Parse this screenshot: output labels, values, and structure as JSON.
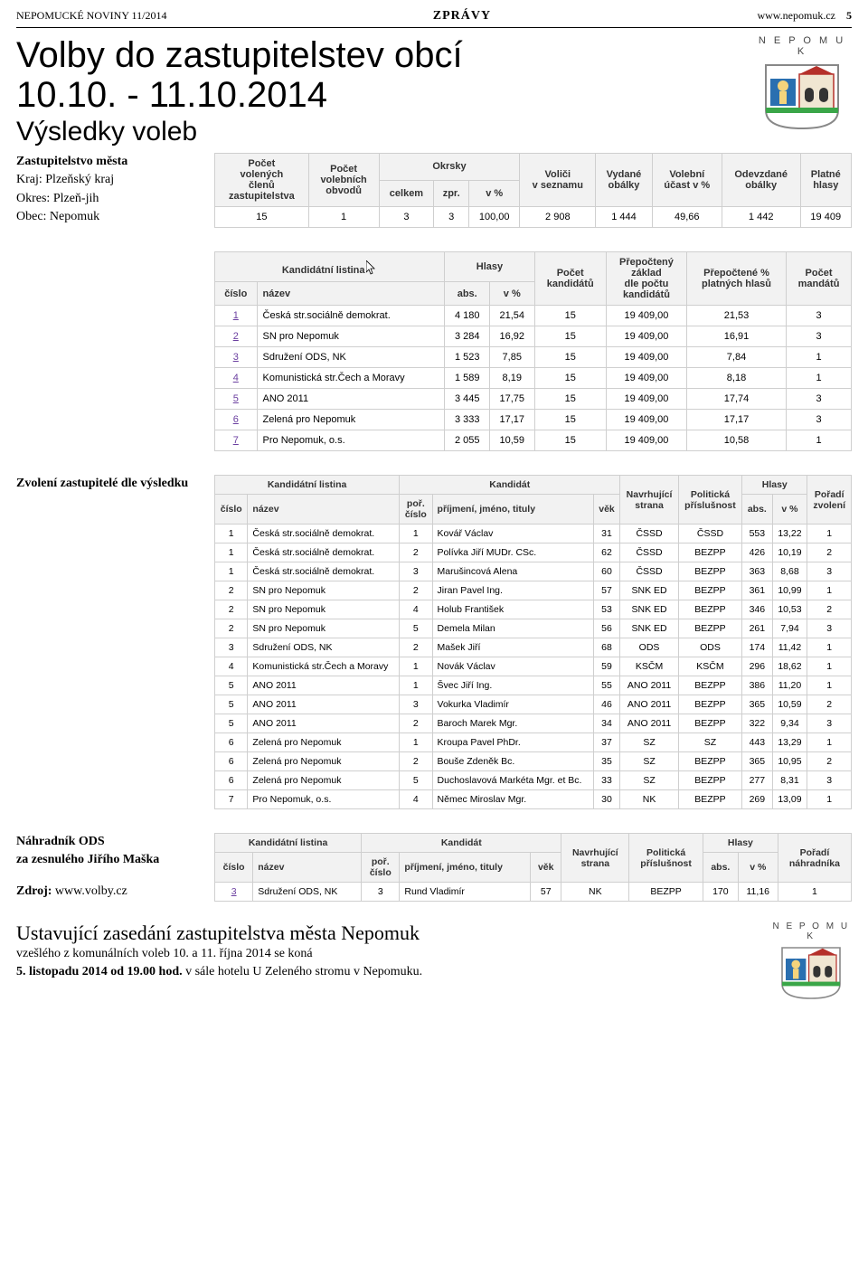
{
  "topbar": {
    "left": "NEPOMUCKÉ NOVINY 11/2014",
    "center": "ZPRÁVY",
    "right_site": "www.nepomuk.cz",
    "right_page": "5"
  },
  "headline": {
    "h1": "Volby do zastupitelstev obcí",
    "date": "10.10. - 11.10.2014",
    "sub": "Výsledky voleb"
  },
  "city_label": "N E P O M U K",
  "meta": {
    "l1b": "Zastupitelstvo města",
    "l2": "Kraj: Plzeňský kraj",
    "l3": "Okres: Plzeň-jih",
    "l4": "Obec: Nepomuk"
  },
  "t1": {
    "headers": {
      "c1a": "Počet",
      "c1b": "volených",
      "c1c": "členů",
      "c1d": "zastupitelstva",
      "c2a": "Počet",
      "c2b": "volebních",
      "c2c": "obvodů",
      "okrsky": "Okrsky",
      "c3": "celkem",
      "c4": "zpr.",
      "c5": "v %",
      "c6a": "Voliči",
      "c6b": "v seznamu",
      "c7a": "Vydané",
      "c7b": "obálky",
      "c8a": "Volební",
      "c8b": "účast v %",
      "c9a": "Odevzdané",
      "c9b": "obálky",
      "c10a": "Platné",
      "c10b": "hlasy"
    },
    "row": [
      "15",
      "1",
      "3",
      "3",
      "100,00",
      "2 908",
      "1 444",
      "49,66",
      "1 442",
      "19 409"
    ]
  },
  "t2": {
    "headers": {
      "kand": "Kandidátní listina",
      "cislo": "číslo",
      "nazev": "název",
      "hlasy": "Hlasy",
      "abs": "abs.",
      "vpct": "v %",
      "pocetk": "Počet",
      "pocetk2": "kandidátů",
      "prez1": "Přepočtený",
      "prez2": "základ",
      "prez3": "dle počtu",
      "prez4": "kandidátů",
      "pp1": "Přepočtené %",
      "pp2": "platných hlasů",
      "pm1": "Počet",
      "pm2": "mandátů"
    },
    "rows": [
      [
        "1",
        "Česká str.sociálně demokrat.",
        "4 180",
        "21,54",
        "15",
        "19 409,00",
        "21,53",
        "3"
      ],
      [
        "2",
        "SN pro Nepomuk",
        "3 284",
        "16,92",
        "15",
        "19 409,00",
        "16,91",
        "3"
      ],
      [
        "3",
        "Sdružení ODS, NK",
        "1 523",
        "7,85",
        "15",
        "19 409,00",
        "7,84",
        "1"
      ],
      [
        "4",
        "Komunistická str.Čech a Moravy",
        "1 589",
        "8,19",
        "15",
        "19 409,00",
        "8,18",
        "1"
      ],
      [
        "5",
        "ANO 2011",
        "3 445",
        "17,75",
        "15",
        "19 409,00",
        "17,74",
        "3"
      ],
      [
        "6",
        "Zelená pro Nepomuk",
        "3 333",
        "17,17",
        "15",
        "19 409,00",
        "17,17",
        "3"
      ],
      [
        "7",
        "Pro Nepomuk, o.s.",
        "2 055",
        "10,59",
        "15",
        "19 409,00",
        "10,58",
        "1"
      ]
    ]
  },
  "zvoleni_label": "Zvolení zastupitelé dle výsledku",
  "t3": {
    "headers": {
      "kand": "Kandidátní listina",
      "cislo": "číslo",
      "nazev": "název",
      "kandcol": "Kandidát",
      "porc": "poř.",
      "porc2": "číslo",
      "jmeno": "příjmení, jméno, tituly",
      "vek": "věk",
      "ns1": "Navrhující",
      "ns2": "strana",
      "pp1": "Politická",
      "pp2": "příslušnost",
      "hlasy": "Hlasy",
      "abs": "abs.",
      "vpct": "v %",
      "pz1": "Pořadí",
      "pz2": "zvolení"
    },
    "rows": [
      [
        "1",
        "Česká str.sociálně demokrat.",
        "1",
        "Kovář Václav",
        "31",
        "ČSSD",
        "ČSSD",
        "553",
        "13,22",
        "1"
      ],
      [
        "1",
        "Česká str.sociálně demokrat.",
        "2",
        "Polívka Jiří MUDr. CSc.",
        "62",
        "ČSSD",
        "BEZPP",
        "426",
        "10,19",
        "2"
      ],
      [
        "1",
        "Česká str.sociálně demokrat.",
        "3",
        "Marušincová Alena",
        "60",
        "ČSSD",
        "BEZPP",
        "363",
        "8,68",
        "3"
      ],
      [
        "2",
        "SN pro Nepomuk",
        "2",
        "Jiran Pavel Ing.",
        "57",
        "SNK ED",
        "BEZPP",
        "361",
        "10,99",
        "1"
      ],
      [
        "2",
        "SN pro Nepomuk",
        "4",
        "Holub František",
        "53",
        "SNK ED",
        "BEZPP",
        "346",
        "10,53",
        "2"
      ],
      [
        "2",
        "SN pro Nepomuk",
        "5",
        "Demela Milan",
        "56",
        "SNK ED",
        "BEZPP",
        "261",
        "7,94",
        "3"
      ],
      [
        "3",
        "Sdružení ODS, NK",
        "2",
        "Mašek Jiří",
        "68",
        "ODS",
        "ODS",
        "174",
        "11,42",
        "1"
      ],
      [
        "4",
        "Komunistická str.Čech a Moravy",
        "1",
        "Novák Václav",
        "59",
        "KSČM",
        "KSČM",
        "296",
        "18,62",
        "1"
      ],
      [
        "5",
        "ANO 2011",
        "1",
        "Švec Jiří Ing.",
        "55",
        "ANO 2011",
        "BEZPP",
        "386",
        "11,20",
        "1"
      ],
      [
        "5",
        "ANO 2011",
        "3",
        "Vokurka Vladimír",
        "46",
        "ANO 2011",
        "BEZPP",
        "365",
        "10,59",
        "2"
      ],
      [
        "5",
        "ANO 2011",
        "2",
        "Baroch Marek Mgr.",
        "34",
        "ANO 2011",
        "BEZPP",
        "322",
        "9,34",
        "3"
      ],
      [
        "6",
        "Zelená pro Nepomuk",
        "1",
        "Kroupa Pavel PhDr.",
        "37",
        "SZ",
        "SZ",
        "443",
        "13,29",
        "1"
      ],
      [
        "6",
        "Zelená pro Nepomuk",
        "2",
        "Bouše Zdeněk Bc.",
        "35",
        "SZ",
        "BEZPP",
        "365",
        "10,95",
        "2"
      ],
      [
        "6",
        "Zelená pro Nepomuk",
        "5",
        "Duchoslavová Markéta Mgr. et Bc.",
        "33",
        "SZ",
        "BEZPP",
        "277",
        "8,31",
        "3"
      ],
      [
        "7",
        "Pro Nepomuk, o.s.",
        "4",
        "Němec Miroslav Mgr.",
        "30",
        "NK",
        "BEZPP",
        "269",
        "13,09",
        "1"
      ]
    ]
  },
  "nahradnik": {
    "l1": "Náhradník ODS",
    "l2": "za zesnulého Jiřího Maška",
    "zdroj_label": "Zdroj:",
    "zdroj_val": "www.volby.cz"
  },
  "t4": {
    "headers": {
      "kand": "Kandidátní listina",
      "cislo": "číslo",
      "nazev": "název",
      "kandcol": "Kandidát",
      "porc": "poř.",
      "porc2": "číslo",
      "jmeno": "příjmení, jméno, tituly",
      "vek": "věk",
      "ns1": "Navrhující",
      "ns2": "strana",
      "pp1": "Politická",
      "pp2": "příslušnost",
      "hlasy": "Hlasy",
      "abs": "abs.",
      "vpct": "v %",
      "pz1": "Pořadí",
      "pz2": "náhradníka"
    },
    "row": [
      "3",
      "Sdružení ODS, NK",
      "3",
      "Rund Vladimír",
      "57",
      "NK",
      "BEZPP",
      "170",
      "11,16",
      "1"
    ]
  },
  "footer": {
    "h": "Ustavující zasedání zastupitelstva města Nepomuk",
    "p1a": "vzešlého z komunálních voleb 10. a 11. října 2014 se koná",
    "p2a": "5. listopadu 2014 od 19.00 hod.",
    "p2b": " v sále hotelu U Zeleného stromu v Nepomuku."
  },
  "colors": {
    "border": "#cfcfcf",
    "thbg": "#f2f2f2",
    "link": "#6b3fa0"
  }
}
